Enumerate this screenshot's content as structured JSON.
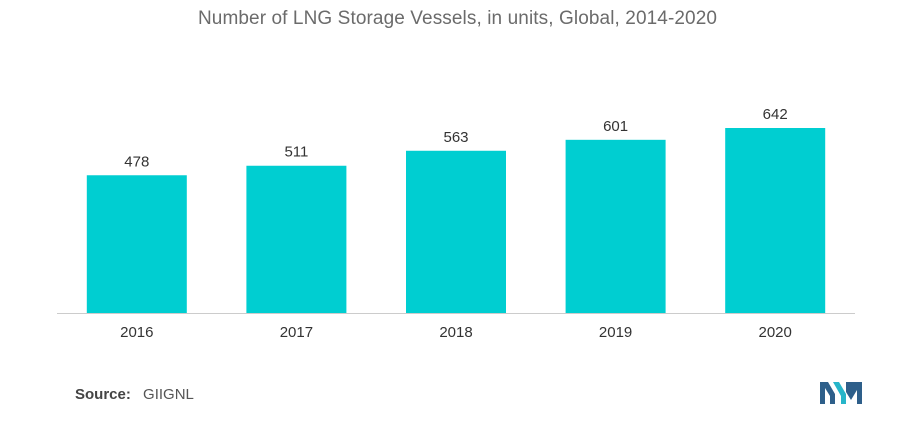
{
  "chart_data": {
    "type": "bar",
    "title": "Number of LNG Storage Vessels, in units, Global, 2014-2020",
    "categories": [
      "2016",
      "2017",
      "2018",
      "2019",
      "2020"
    ],
    "values": [
      478,
      511,
      563,
      601,
      642
    ],
    "xlabel": "",
    "ylabel": "",
    "ylim": [
      0,
      642
    ],
    "grid": false,
    "legend": "none",
    "bar_color": "#00ced1",
    "axis_color": "#cccccc"
  },
  "source": {
    "label": "Source:",
    "value": "GIIGNL"
  },
  "logo": {
    "icon": "mordor-intelligence-logo-icon",
    "colors": [
      "#2e5f8a",
      "#26b5c9"
    ]
  }
}
